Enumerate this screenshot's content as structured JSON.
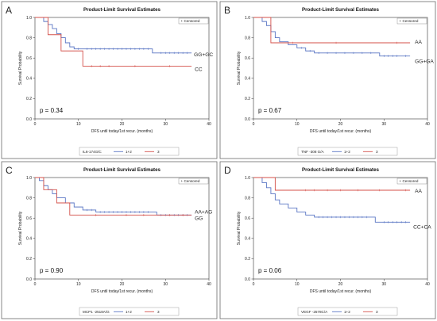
{
  "chart_data": [
    {
      "type": "line",
      "panel_letter": "A",
      "title": "Product-Limit Survival Estimates",
      "xlabel": "DFS until today/1st recur. (months)",
      "ylabel": "Survival Probability",
      "xlim": [
        0,
        40
      ],
      "ylim": [
        0,
        1.0
      ],
      "xticks": [
        "0",
        "10",
        "20",
        "30",
        "40"
      ],
      "yticks": [
        "0.0",
        "0.2",
        "0.4",
        "0.6",
        "0.8",
        "1.0"
      ],
      "legend_censored": "+ Censored",
      "legend_title": "IL6-174G/C",
      "legend_series": [
        "1+2",
        "3"
      ],
      "p_value": "p = 0.34",
      "series": [
        {
          "label": "GG+GC",
          "color": "#5a76c4",
          "steps": [
            [
              0,
              1.0
            ],
            [
              2,
              0.96
            ],
            [
              3,
              0.93
            ],
            [
              4,
              0.89
            ],
            [
              5,
              0.84
            ],
            [
              6,
              0.8
            ],
            [
              7,
              0.75
            ],
            [
              8,
              0.71
            ],
            [
              9,
              0.69
            ],
            [
              27,
              0.65
            ],
            [
              36,
              0.65
            ]
          ],
          "censored": [
            10,
            12,
            13,
            14,
            15,
            16,
            17,
            18,
            19,
            20,
            21,
            22,
            23,
            24,
            25,
            26,
            29,
            30,
            31,
            32,
            33,
            34,
            35
          ]
        },
        {
          "label": "CC",
          "color": "#d4504a",
          "steps": [
            [
              0,
              1.0
            ],
            [
              3,
              0.83
            ],
            [
              6,
              0.67
            ],
            [
              11,
              0.52
            ],
            [
              36,
              0.52
            ]
          ],
          "censored": [
            13,
            15,
            17,
            23,
            31
          ]
        }
      ]
    },
    {
      "type": "line",
      "panel_letter": "B",
      "title": "Product-Limit Survival Estimates",
      "xlabel": "DFS until today/1st recur. (months)",
      "ylabel": "Survival Probability",
      "xlim": [
        0,
        40
      ],
      "ylim": [
        0,
        1.0
      ],
      "xticks": [
        "0",
        "10",
        "20",
        "30",
        "40"
      ],
      "yticks": [
        "0.0",
        "0.2",
        "0.4",
        "0.6",
        "0.8",
        "1.0"
      ],
      "legend_censored": "+ Censored",
      "legend_title": "TNF -308 G/A",
      "legend_series": [
        "1+2",
        "3"
      ],
      "p_value": "p = 0.67",
      "series": [
        {
          "label": "GG+GA",
          "color": "#5a76c4",
          "steps": [
            [
              0,
              1.0
            ],
            [
              2,
              0.96
            ],
            [
              3,
              0.92
            ],
            [
              4,
              0.86
            ],
            [
              5,
              0.8
            ],
            [
              6,
              0.76
            ],
            [
              8,
              0.73
            ],
            [
              10,
              0.7
            ],
            [
              12,
              0.67
            ],
            [
              14,
              0.65
            ],
            [
              29,
              0.62
            ],
            [
              36,
              0.62
            ]
          ],
          "censored": [
            11,
            13,
            15,
            17,
            19,
            21,
            23,
            25,
            27,
            30,
            31,
            32,
            33,
            35
          ]
        },
        {
          "label": "AA",
          "color": "#d4504a",
          "steps": [
            [
              0,
              1.0
            ],
            [
              4,
              0.75
            ],
            [
              36,
              0.75
            ]
          ],
          "censored": [
            9,
            19,
            33
          ]
        }
      ]
    },
    {
      "type": "line",
      "panel_letter": "C",
      "title": "Product-Limit Survival Estimates",
      "xlabel": "DFS until today/1st recur. (months)",
      "ylabel": "Survival Probability",
      "xlim": [
        0,
        40
      ],
      "ylim": [
        0,
        1.0
      ],
      "xticks": [
        "0",
        "10",
        "20",
        "30",
        "40"
      ],
      "yticks": [
        "0.0",
        "0.2",
        "0.4",
        "0.6",
        "0.8",
        "1.0"
      ],
      "legend_censored": "+ Censored",
      "legend_title": "MCP1 -2518A/G",
      "legend_series": [
        "1+2",
        "3"
      ],
      "p_value": "p = 0.90",
      "series": [
        {
          "label": "AA+AG",
          "color": "#5a76c4",
          "steps": [
            [
              0,
              1.0
            ],
            [
              1,
              0.97
            ],
            [
              2,
              0.92
            ],
            [
              3,
              0.88
            ],
            [
              4,
              0.84
            ],
            [
              5,
              0.8
            ],
            [
              7,
              0.75
            ],
            [
              9,
              0.71
            ],
            [
              11,
              0.68
            ],
            [
              14,
              0.66
            ],
            [
              28,
              0.63
            ],
            [
              36,
              0.63
            ]
          ],
          "censored": [
            12,
            13,
            15,
            16,
            17,
            18,
            19,
            20,
            21,
            22,
            23,
            24,
            25,
            26,
            29,
            30,
            31,
            32,
            33,
            34,
            35
          ]
        },
        {
          "label": "GG",
          "color": "#d4504a",
          "steps": [
            [
              0,
              1.0
            ],
            [
              2,
              0.88
            ],
            [
              5,
              0.75
            ],
            [
              8,
              0.63
            ],
            [
              36,
              0.63
            ]
          ],
          "censored": [
            14,
            21,
            25,
            31,
            34
          ]
        }
      ]
    },
    {
      "type": "line",
      "panel_letter": "D",
      "title": "Product-Limit Survival Estimates",
      "xlabel": "DFS until today/1st recur. (months)",
      "ylabel": "Survival Probability",
      "xlim": [
        0,
        40
      ],
      "ylim": [
        0,
        1.0
      ],
      "xticks": [
        "0",
        "10",
        "20",
        "30",
        "40"
      ],
      "yticks": [
        "0.0",
        "0.2",
        "0.4",
        "0.6",
        "0.8",
        "1.0"
      ],
      "legend_censored": "+ Censored",
      "legend_title": "VEGF -2578C/A",
      "legend_series": [
        "1+2",
        "3"
      ],
      "p_value": "p = 0.06",
      "series": [
        {
          "label": "CC+CA",
          "color": "#5a76c4",
          "steps": [
            [
              0,
              1.0
            ],
            [
              2,
              0.95
            ],
            [
              3,
              0.9
            ],
            [
              4,
              0.84
            ],
            [
              5,
              0.78
            ],
            [
              6,
              0.74
            ],
            [
              8,
              0.7
            ],
            [
              10,
              0.66
            ],
            [
              12,
              0.63
            ],
            [
              14,
              0.61
            ],
            [
              28,
              0.56
            ],
            [
              36,
              0.56
            ]
          ],
          "censored": [
            15,
            16,
            17,
            18,
            19,
            20,
            21,
            22,
            23,
            24,
            25,
            26,
            30,
            31,
            32,
            33,
            34,
            35
          ]
        },
        {
          "label": "AA",
          "color": "#d4504a",
          "steps": [
            [
              0,
              1.0
            ],
            [
              5,
              0.875
            ],
            [
              36,
              0.875
            ]
          ],
          "censored": [
            12,
            14,
            17,
            20,
            24,
            29,
            35
          ]
        }
      ]
    }
  ]
}
